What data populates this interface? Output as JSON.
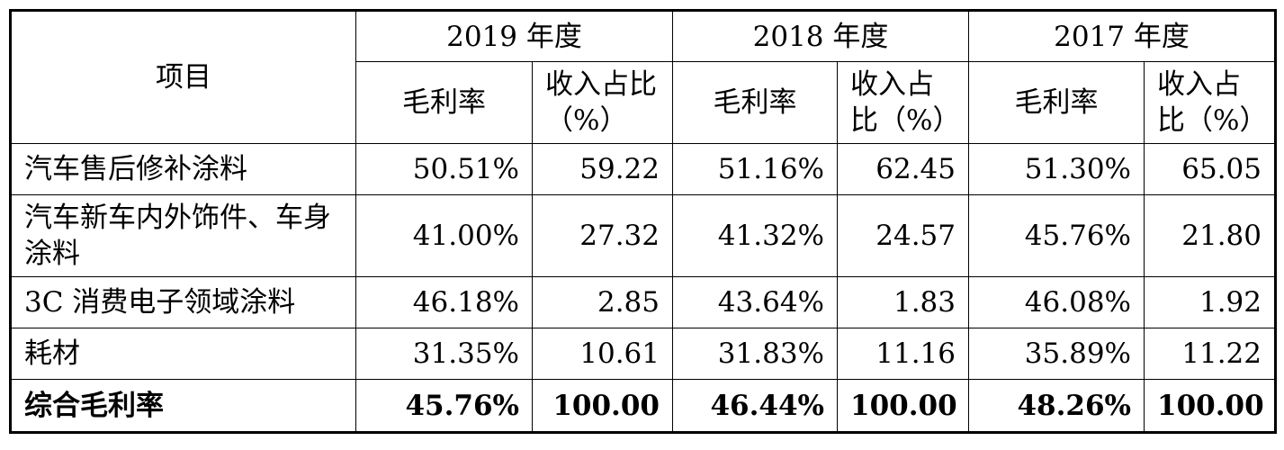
{
  "table": {
    "project_header": "项目",
    "years": [
      "2019 年度",
      "2018 年度",
      "2017 年度"
    ],
    "sub_headers": {
      "margin": "毛利率",
      "share": "收入占比（%）"
    },
    "rows": [
      {
        "label": "汽车售后修补涂料",
        "cells": [
          "50.51%",
          "59.22",
          "51.16%",
          "62.45",
          "51.30%",
          "65.05"
        ]
      },
      {
        "label": "汽车新车内外饰件、车身涂料",
        "cells": [
          "41.00%",
          "27.32",
          "41.32%",
          "24.57",
          "45.76%",
          "21.80"
        ]
      },
      {
        "label": "3C 消费电子领域涂料",
        "cells": [
          "46.18%",
          "2.85",
          "43.64%",
          "1.83",
          "46.08%",
          "1.92"
        ]
      },
      {
        "label": "耗材",
        "cells": [
          "31.35%",
          "10.61",
          "31.83%",
          "11.16",
          "35.89%",
          "11.22"
        ]
      }
    ],
    "total": {
      "label": "综合毛利率",
      "cells": [
        "45.76%",
        "100.00",
        "46.44%",
        "100.00",
        "48.26%",
        "100.00"
      ]
    }
  }
}
